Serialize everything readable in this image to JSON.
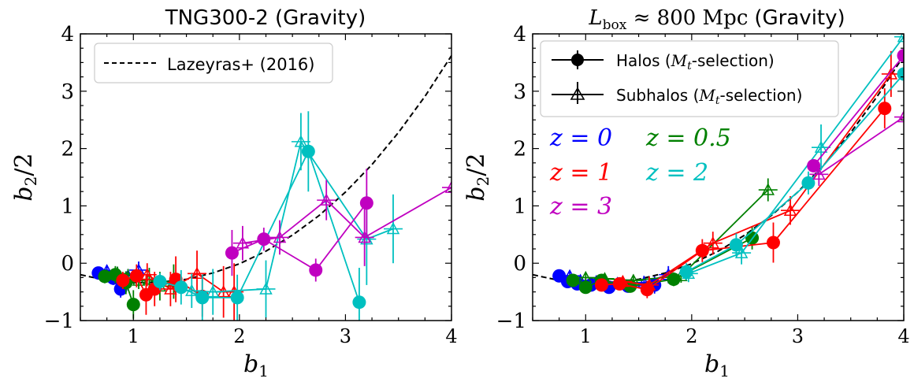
{
  "chart_data": [
    {
      "type": "line",
      "title": "TNG300-2 (Gravity)",
      "xlabel": "b",
      "xlabel_sub": "1",
      "ylabel": "b",
      "ylabel_sub": "2",
      "ylabel_suffix": "/2",
      "xlim": [
        0.5,
        4.0
      ],
      "ylim": [
        -1.0,
        4.0
      ],
      "xticks": [
        "1",
        "2",
        "3",
        "4"
      ],
      "yticks": [
        "−1",
        "0",
        "1",
        "2",
        "3",
        "4"
      ],
      "grid": false,
      "legend": {
        "position": "top-left",
        "entries": [
          "Lazeyras+ (2016)"
        ]
      },
      "reference_curve": {
        "name": "Lazeyras+ (2016)",
        "style": "dashed",
        "color": "#000000",
        "x": [
          0.5,
          0.75,
          1.0,
          1.25,
          1.5,
          1.75,
          2.0,
          2.25,
          2.5,
          2.75,
          3.0,
          3.25,
          3.5,
          3.75,
          4.0
        ],
        "y": [
          -0.2,
          -0.3,
          -0.34,
          -0.33,
          -0.28,
          -0.17,
          -0.01,
          0.21,
          0.49,
          0.83,
          1.24,
          1.72,
          2.28,
          2.91,
          3.62
        ]
      },
      "series": [
        {
          "color": "#0000ff",
          "marker": "circle",
          "x": [
            0.67,
            0.74,
            0.81,
            0.88
          ],
          "y": [
            -0.17,
            -0.22,
            -0.26,
            -0.45
          ],
          "yerr": [
            0.1,
            0.1,
            0.12,
            0.15
          ]
        },
        {
          "color": "#0000ff",
          "marker": "triangle",
          "x": [
            0.75,
            0.85,
            0.95,
            1.05
          ],
          "y": [
            -0.13,
            -0.18,
            -0.22,
            -0.12
          ],
          "yerr": [
            0.1,
            0.12,
            0.12,
            0.15
          ]
        },
        {
          "color": "#008000",
          "marker": "circle",
          "x": [
            0.73,
            0.83,
            0.93,
            1.0
          ],
          "y": [
            -0.23,
            -0.2,
            -0.34,
            -0.72
          ],
          "yerr": [
            0.12,
            0.15,
            0.2,
            0.25
          ]
        },
        {
          "color": "#008000",
          "marker": "triangle",
          "x": [
            0.85,
            0.95,
            1.05,
            1.15,
            1.25,
            1.38
          ],
          "y": [
            -0.18,
            -0.25,
            -0.3,
            -0.28,
            -0.4,
            -0.32
          ],
          "yerr": [
            0.12,
            0.15,
            0.15,
            0.2,
            0.25,
            0.3
          ]
        },
        {
          "color": "#ff0000",
          "marker": "circle",
          "x": [
            0.9,
            1.03,
            1.12,
            1.2,
            1.4,
            1.65
          ],
          "y": [
            -0.3,
            -0.22,
            -0.55,
            -0.45,
            -0.28,
            -0.58
          ],
          "yerr": [
            0.15,
            0.2,
            0.35,
            0.3,
            0.4,
            0.35
          ]
        },
        {
          "color": "#ff0000",
          "marker": "triangle",
          "x": [
            1.13,
            1.35,
            1.6,
            1.85,
            1.95
          ],
          "y": [
            -0.2,
            -0.45,
            -0.18,
            -0.5,
            -0.5
          ],
          "yerr": [
            0.2,
            0.3,
            0.4,
            0.45,
            0.5
          ]
        },
        {
          "color": "#00c0c0",
          "marker": "circle",
          "x": [
            1.25,
            1.45,
            1.65,
            1.98,
            2.65,
            3.13
          ],
          "y": [
            -0.32,
            -0.42,
            -0.6,
            -0.6,
            1.95,
            -0.68
          ],
          "yerr": [
            0.15,
            0.3,
            0.4,
            0.4,
            0.7,
            0.6
          ]
        },
        {
          "color": "#00c0c0",
          "marker": "triangle",
          "x": [
            1.55,
            1.75,
            2.25,
            2.58,
            3.2,
            3.45
          ],
          "y": [
            -0.48,
            -0.5,
            -0.45,
            2.12,
            0.42,
            0.6
          ],
          "yerr": [
            0.3,
            0.4,
            0.5,
            0.5,
            0.8,
            0.6
          ]
        },
        {
          "color": "#c000c0",
          "marker": "circle",
          "x": [
            1.93,
            2.23,
            2.72,
            3.2
          ],
          "y": [
            0.18,
            0.42,
            -0.12,
            1.05
          ],
          "yerr": [
            0.4,
            0.2,
            0.2,
            0.6
          ]
        },
        {
          "color": "#c000c0",
          "marker": "triangle",
          "x": [
            2.03,
            2.38,
            2.82,
            3.18,
            4.0
          ],
          "y": [
            0.35,
            0.45,
            1.1,
            0.45,
            1.32
          ],
          "yerr": [
            0.3,
            0.3,
            0.35,
            0.5,
            0.0
          ]
        }
      ]
    },
    {
      "type": "line",
      "title_math_main": "L",
      "title_math_sub": "box",
      "title_rest": " ≈ 800 Mpc",
      "title_suffix": "(Gravity)",
      "xlabel": "b",
      "xlabel_sub": "1",
      "ylabel": "b",
      "ylabel_sub": "2",
      "ylabel_suffix": "/2",
      "xlim": [
        0.5,
        4.0
      ],
      "ylim": [
        -1.0,
        4.0
      ],
      "xticks": [
        "1",
        "2",
        "3",
        "4"
      ],
      "yticks": [
        "−1",
        "0",
        "1",
        "2",
        "3",
        "4"
      ],
      "grid": false,
      "legend": {
        "position": "top-left",
        "entries": [
          {
            "label_before": "Halos (",
            "label_math": "M",
            "label_sub": "t",
            "label_after": "-selection)"
          },
          {
            "label_before": "Subhalos (",
            "label_math": "M",
            "label_sub": "t",
            "label_after": "-selection)"
          }
        ]
      },
      "z_labels": [
        {
          "text": "z = 0",
          "color": "#0000ff"
        },
        {
          "text": "z = 0.5",
          "color": "#008000"
        },
        {
          "text": "z = 1",
          "color": "#ff0000"
        },
        {
          "text": "z = 2",
          "color": "#00c0c0"
        },
        {
          "text": "z = 3",
          "color": "#c000c0"
        }
      ],
      "reference_curve": {
        "style": "dashed",
        "color": "#000000",
        "x": [
          0.5,
          0.75,
          1.0,
          1.25,
          1.5,
          1.75,
          2.0,
          2.25,
          2.5,
          2.75,
          3.0,
          3.25,
          3.5,
          3.75,
          4.0
        ],
        "y": [
          -0.2,
          -0.3,
          -0.34,
          -0.33,
          -0.28,
          -0.17,
          -0.01,
          0.21,
          0.49,
          0.83,
          1.24,
          1.72,
          2.28,
          2.91,
          3.62
        ]
      },
      "series": [
        {
          "color": "#0000ff",
          "marker": "circle",
          "x": [
            0.75,
            0.83,
            0.92,
            1.05,
            1.22,
            1.4,
            1.65
          ],
          "y": [
            -0.22,
            -0.32,
            -0.36,
            -0.38,
            -0.42,
            -0.4,
            -0.38
          ],
          "yerr": [
            0.08,
            0.08,
            0.08,
            0.08,
            0.08,
            0.1,
            0.15
          ]
        },
        {
          "color": "#0000ff",
          "marker": "triangle",
          "x": [
            0.85,
            0.95,
            1.1,
            1.3,
            1.55,
            1.78
          ],
          "y": [
            -0.22,
            -0.3,
            -0.32,
            -0.35,
            -0.34,
            -0.2
          ],
          "yerr": [
            0.08,
            0.08,
            0.08,
            0.1,
            0.12,
            0.15
          ]
        },
        {
          "color": "#008000",
          "marker": "circle",
          "x": [
            0.88,
            1.0,
            1.15,
            1.42,
            1.83,
            2.57
          ],
          "y": [
            -0.3,
            -0.42,
            -0.3,
            -0.4,
            -0.28,
            0.44
          ],
          "yerr": [
            0.08,
            0.08,
            0.08,
            0.1,
            0.12,
            0.2
          ]
        },
        {
          "color": "#008000",
          "marker": "triangle",
          "x": [
            1.0,
            1.18,
            1.45,
            1.9,
            2.72
          ],
          "y": [
            -0.25,
            -0.27,
            -0.3,
            -0.22,
            1.28
          ],
          "yerr": [
            0.08,
            0.08,
            0.1,
            0.12,
            0.2
          ]
        },
        {
          "color": "#ff0000",
          "marker": "circle",
          "x": [
            1.15,
            1.32,
            1.58,
            2.1,
            2.77,
            3.82
          ],
          "y": [
            -0.38,
            -0.36,
            -0.46,
            0.22,
            0.36,
            2.7
          ],
          "yerr": [
            0.1,
            0.1,
            0.15,
            0.2,
            0.35,
            0.35
          ]
        },
        {
          "color": "#ff0000",
          "marker": "triangle",
          "x": [
            1.35,
            1.6,
            2.2,
            2.93,
            3.88
          ],
          "y": [
            -0.32,
            -0.38,
            0.35,
            0.92,
            3.3
          ],
          "yerr": [
            0.1,
            0.15,
            0.2,
            0.25,
            0.4
          ]
        },
        {
          "color": "#00c0c0",
          "marker": "circle",
          "x": [
            1.95,
            2.42,
            3.1,
            4.0
          ],
          "y": [
            -0.15,
            0.32,
            1.4,
            3.3
          ],
          "yerr": [
            0.15,
            0.2,
            0.2,
            0.0
          ]
        },
        {
          "color": "#00c0c0",
          "marker": "triangle",
          "x": [
            1.97,
            2.47,
            3.22,
            4.0
          ],
          "y": [
            -0.18,
            0.18,
            2.02,
            3.95
          ],
          "yerr": [
            0.15,
            0.2,
            0.4,
            0.0
          ]
        },
        {
          "color": "#c000c0",
          "marker": "circle",
          "x": [
            3.15,
            4.0
          ],
          "y": [
            1.7,
            3.62
          ],
          "yerr": [
            0.1,
            0.0
          ]
        },
        {
          "color": "#c000c0",
          "marker": "triangle",
          "x": [
            3.2,
            4.0
          ],
          "y": [
            1.55,
            2.55
          ],
          "yerr": [
            0.2,
            0.0
          ]
        }
      ]
    }
  ]
}
